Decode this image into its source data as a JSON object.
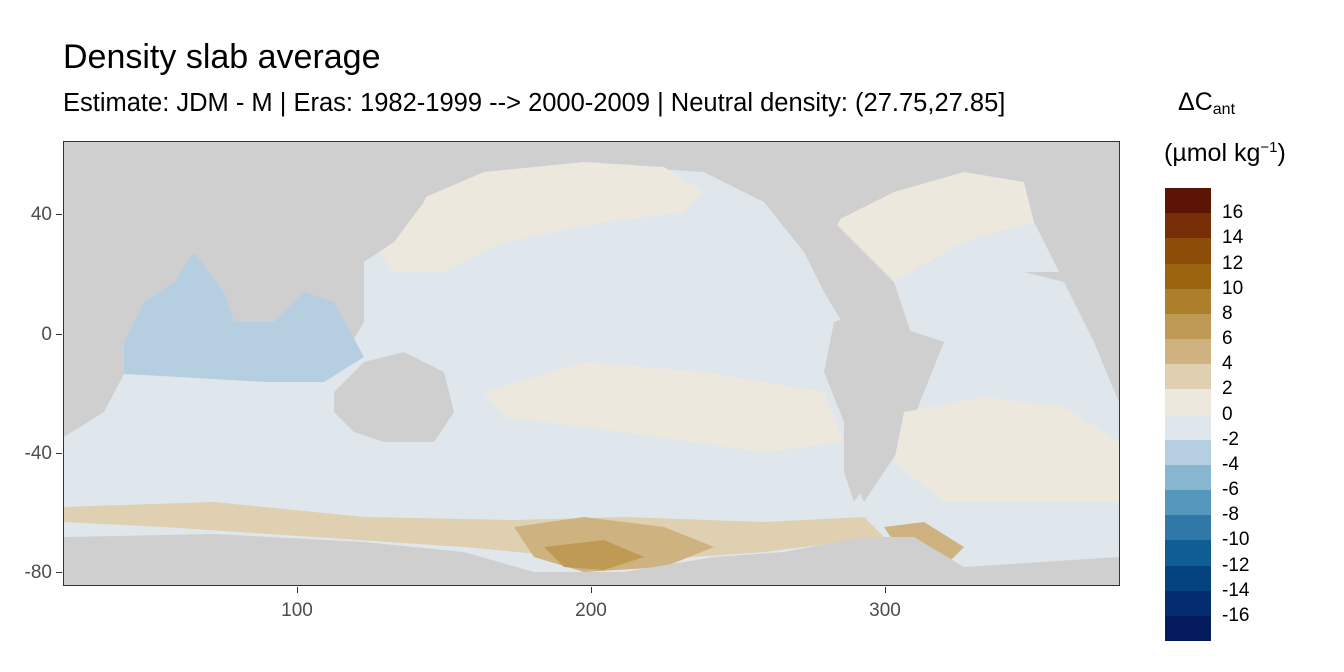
{
  "title": "Density slab average",
  "subtitle": "Estimate: JDM - M | Eras: 1982-1999 --> 2000-2009 | Neutral density: (27.75,27.85]",
  "x_axis": {
    "ticks": [
      "100",
      "200",
      "300"
    ],
    "range": [
      21,
      381
    ]
  },
  "y_axis": {
    "ticks": [
      "40",
      "0",
      "-40",
      "-80"
    ],
    "range": [
      -84,
      65
    ]
  },
  "legend": {
    "title_symbol": "ΔC",
    "title_subscript": "ant",
    "unit_prefix": "(µmol kg",
    "unit_superscript": "−1",
    "unit_suffix": ")",
    "labels": [
      "16",
      "14",
      "12",
      "10",
      "8",
      "6",
      "4",
      "2",
      "0",
      "-2",
      "-4",
      "-6",
      "-8",
      "-10",
      "-12",
      "-14",
      "-16"
    ],
    "colors": [
      "#5b1404",
      "#782e06",
      "#8c4d08",
      "#9b640f",
      "#ad7f2c",
      "#bf9a55",
      "#ceb27f",
      "#ded0b0",
      "#ece8de",
      "#dfe7ec",
      "#b5cfe0",
      "#86b6d0",
      "#5596bd",
      "#2f78a7",
      "#0f5e93",
      "#044380",
      "#032d6e",
      "#031a5c"
    ]
  },
  "colors": {
    "land": "#cfcfcf",
    "panel_border": "#333333"
  }
}
